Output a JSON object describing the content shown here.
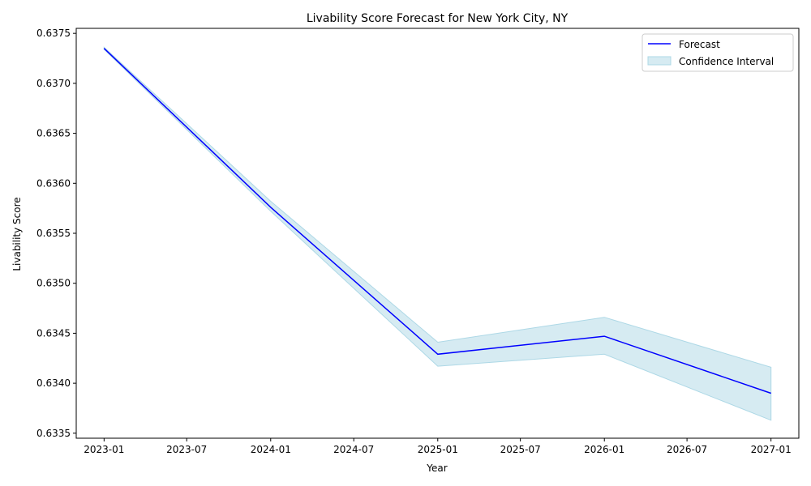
{
  "chart_data": {
    "type": "line",
    "title": "Livability Score Forecast for New York City, NY",
    "xlabel": "Year",
    "ylabel": "Livability Score",
    "x_ticks": [
      "2023-01",
      "2023-07",
      "2024-01",
      "2024-07",
      "2025-01",
      "2025-07",
      "2026-01",
      "2026-07",
      "2027-01"
    ],
    "y_ticks": [
      "0.6335",
      "0.6340",
      "0.6345",
      "0.6350",
      "0.6355",
      "0.6360",
      "0.6365",
      "0.6370",
      "0.6375"
    ],
    "xlim": [
      "2022-11-01",
      "2027-03-03"
    ],
    "ylim": [
      0.63345,
      0.63755
    ],
    "grid": false,
    "legend_position": "top-right",
    "series": [
      {
        "name": "Forecast",
        "color": "#0000ff",
        "x": [
          "2023-01-01",
          "2024-01-01",
          "2025-01-01",
          "2026-01-01",
          "2027-01-01"
        ],
        "values": [
          0.63735,
          0.63576,
          0.63429,
          0.63447,
          0.6339
        ]
      },
      {
        "name": "Confidence Interval",
        "color": "#add8e6",
        "x": [
          "2023-01-01",
          "2024-01-01",
          "2025-01-01",
          "2026-01-01",
          "2027-01-01"
        ],
        "lower": [
          0.63734,
          0.63572,
          0.63417,
          0.63429,
          0.63363
        ],
        "upper": [
          0.63736,
          0.63582,
          0.63441,
          0.63466,
          0.63416
        ]
      }
    ]
  }
}
